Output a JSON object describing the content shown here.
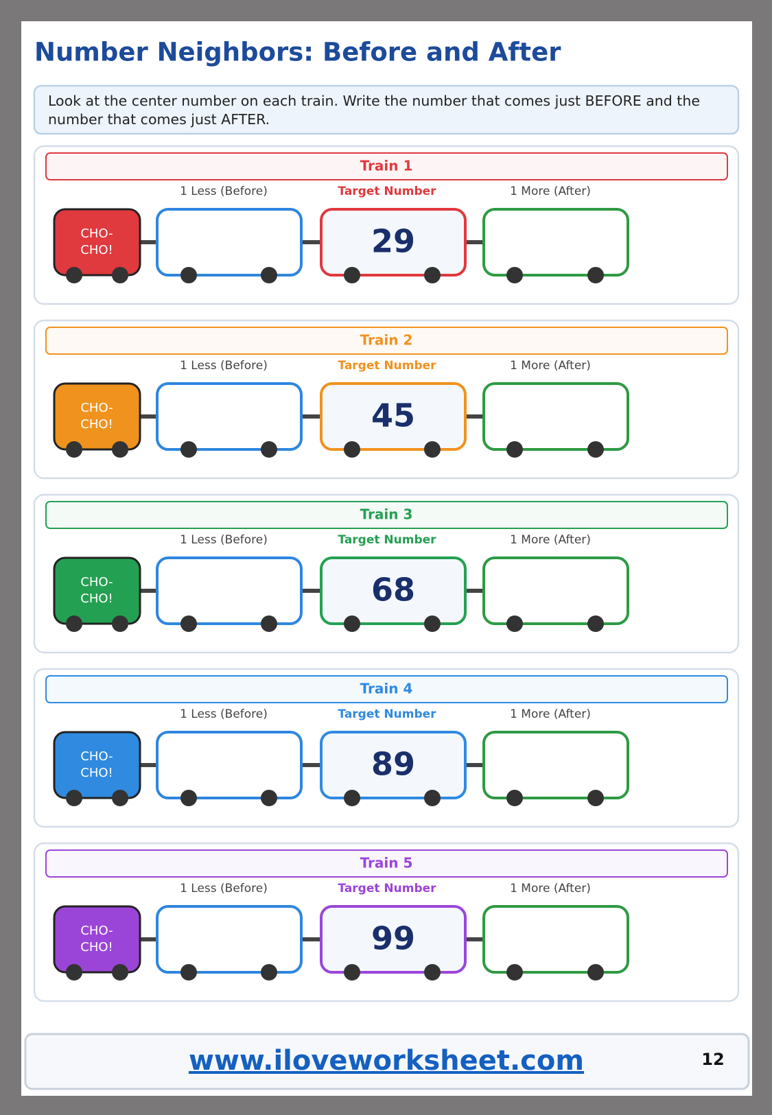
{
  "header": {
    "title": "Number Neighbors: Before and After"
  },
  "instructions": "Look at the center number on each train. Write the number that comes just BEFORE and the number that comes just AFTER.",
  "trains": [
    {
      "label": "Train 1",
      "engine": [
        "CHO-",
        "CHO!"
      ],
      "before_label": "1 Less (Before)",
      "target_label": "Target Number",
      "after_label": "1 More (After)",
      "target": 29,
      "color": "#e0393e"
    },
    {
      "label": "Train 2",
      "engine": [
        "CHO-",
        "CHO!"
      ],
      "before_label": "1 Less (Before)",
      "target_label": "Target Number",
      "after_label": "1 More (After)",
      "target": 45,
      "color": "#f0921e"
    },
    {
      "label": "Train 3",
      "engine": [
        "CHO-",
        "CHO!"
      ],
      "before_label": "1 Less (Before)",
      "target_label": "Target Number",
      "after_label": "1 More (After)",
      "target": 68,
      "color": "#24a052"
    },
    {
      "label": "Train 4",
      "engine": [
        "CHO-",
        "CHO!"
      ],
      "before_label": "1 Less (Before)",
      "target_label": "Target Number",
      "after_label": "1 More (After)",
      "target": 89,
      "color": "#2f8ae0"
    },
    {
      "label": "Train 5",
      "engine": [
        "CHO-",
        "CHO!"
      ],
      "before_label": "1 Less (Before)",
      "target_label": "Target Number",
      "after_label": "1 More (After)",
      "target": 99,
      "color": "#9b45d8"
    }
  ],
  "footer": {
    "url": "www.iloveworksheet.com",
    "page": 12
  }
}
